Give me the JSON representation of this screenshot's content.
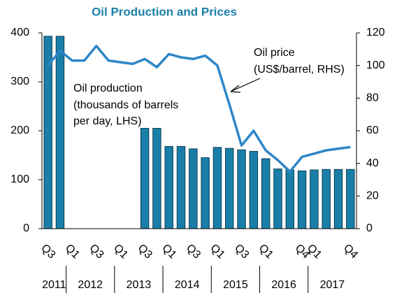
{
  "chart_data": {
    "type": "bar_line",
    "title": "Oil Production and Prices",
    "categories": [
      "Q3",
      null,
      "Q1",
      null,
      "Q3",
      null,
      "Q1",
      null,
      "Q3",
      null,
      "Q1",
      null,
      "Q3",
      null,
      "Q1",
      null,
      "Q3",
      null,
      "Q1",
      null,
      null,
      "Q4",
      "Q1",
      null,
      null,
      "Q4"
    ],
    "x_groups": [
      "2011",
      "2012",
      "2013",
      "2014",
      "2015",
      "2016",
      "2017"
    ],
    "series": [
      {
        "name": "Oil production (thousands of barrels per day, LHS)",
        "kind": "bar",
        "color": "#1a7fa8",
        "axis": "y",
        "values": [
          393,
          393,
          null,
          null,
          null,
          null,
          null,
          null,
          205,
          205,
          168,
          168,
          163,
          145,
          166,
          164,
          161,
          158,
          143,
          122,
          120,
          118,
          120,
          121,
          121,
          121
        ]
      },
      {
        "name": "Oil price (US$/barrel, RHS)",
        "kind": "line",
        "color": "#2e86c8",
        "axis": "y2",
        "values": [
          100,
          109,
          103,
          103,
          112,
          103,
          102,
          101,
          104,
          99,
          107,
          105,
          104,
          106,
          100,
          76,
          51,
          60,
          48,
          42,
          35,
          44,
          46,
          48,
          49,
          50
        ]
      }
    ],
    "annotations": [
      "Oil price",
      "(US$/barrel, RHS)",
      "Oil production",
      "(thousands of barrels",
      "per day, LHS)"
    ],
    "ylim": [
      0,
      400
    ],
    "yticks": [
      0,
      100,
      200,
      300,
      400
    ],
    "y2lim": [
      0,
      120
    ],
    "y2ticks": [
      0,
      20,
      40,
      60,
      80,
      100,
      120
    ]
  }
}
